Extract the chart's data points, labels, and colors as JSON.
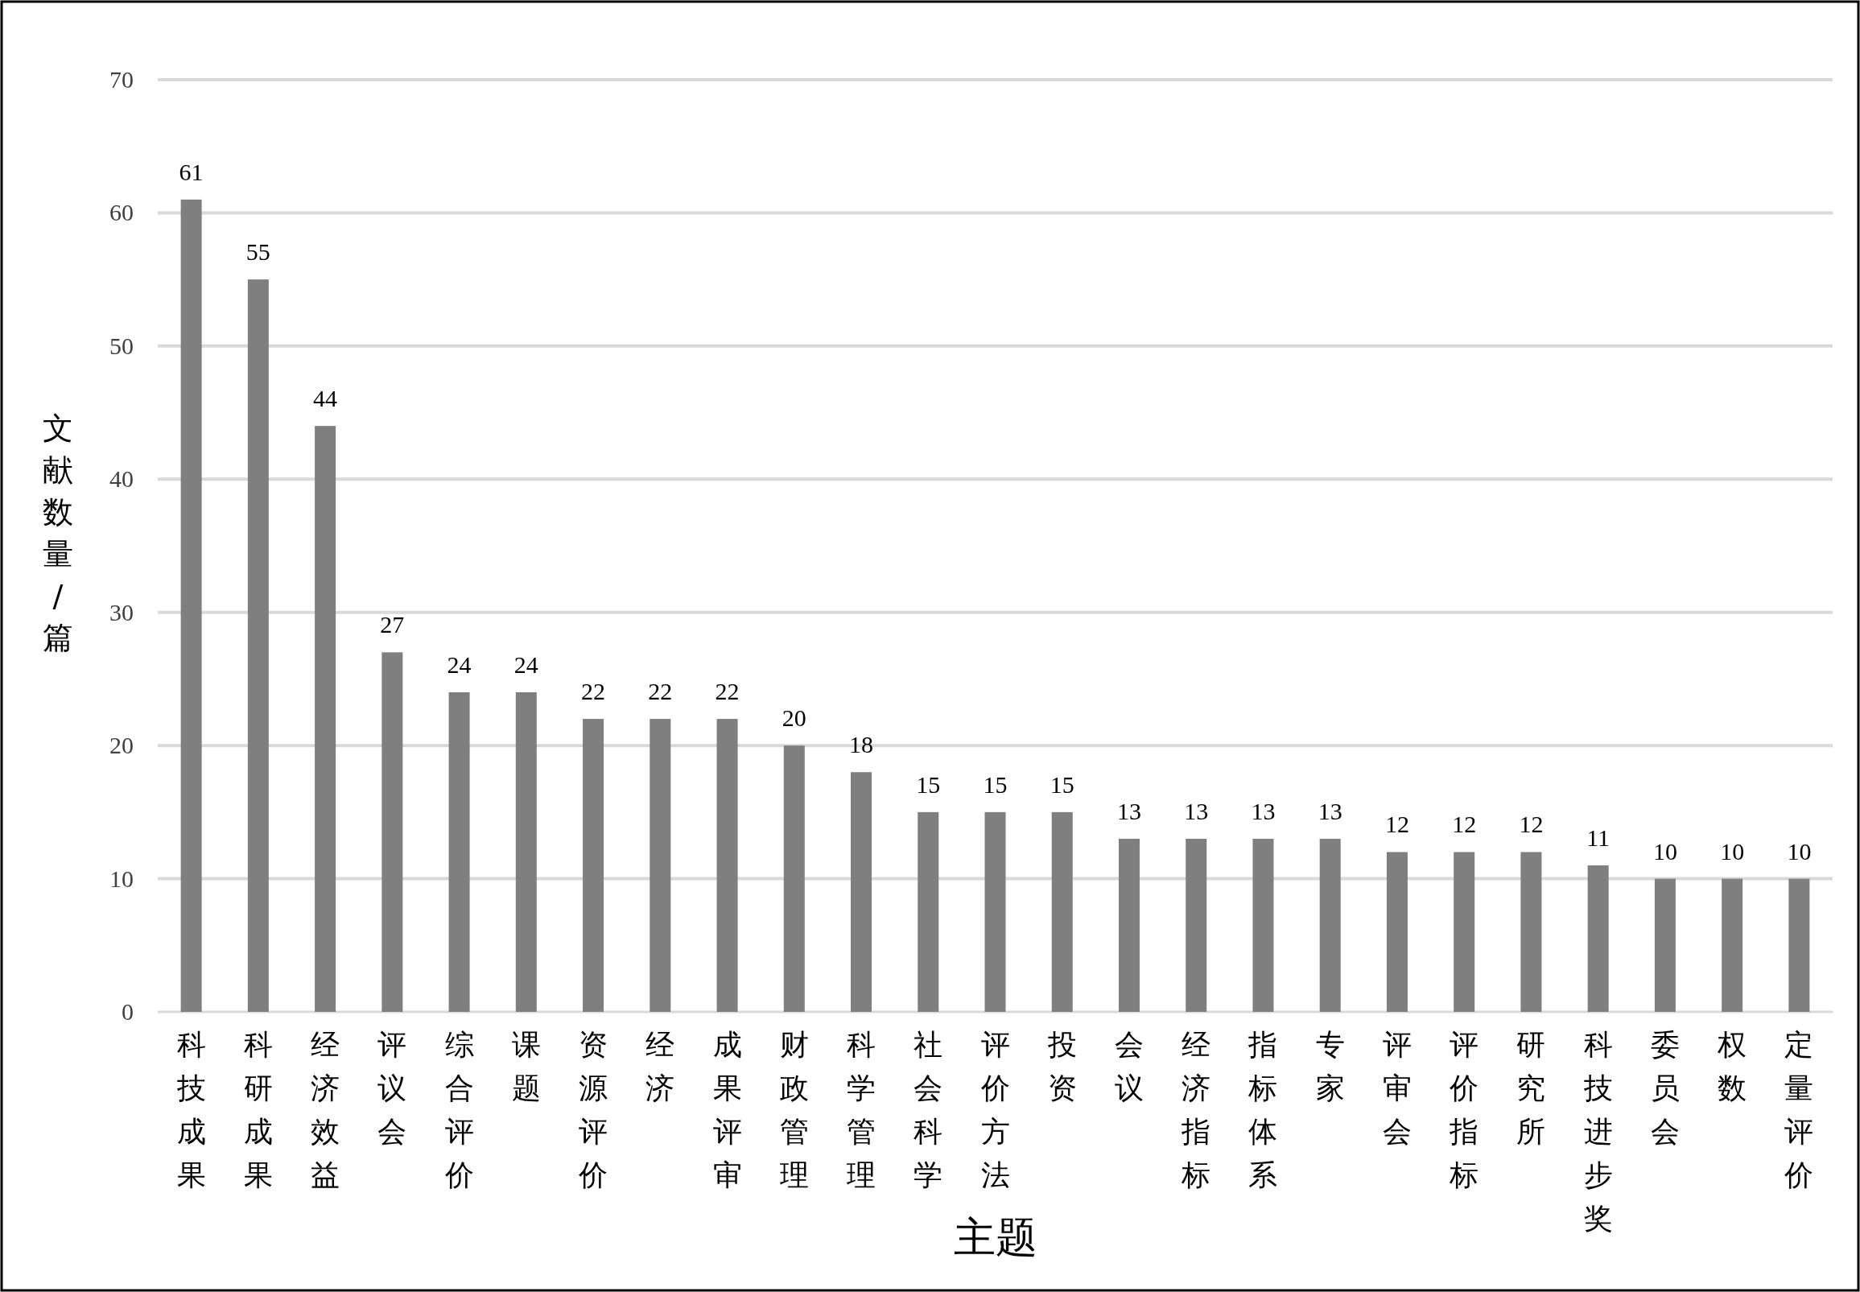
{
  "chart_data": {
    "type": "bar",
    "xlabel": "主题",
    "ylabel": "文献数量/篇",
    "categories": [
      "科技成果",
      "科研成果",
      "经济效益",
      "评议会",
      "综合评价",
      "课题",
      "资源评价",
      "经济",
      "成果评审",
      "财政管理",
      "科学管理",
      "社会科学",
      "评价方法",
      "投资",
      "会议",
      "经济指标",
      "指标体系",
      "专家",
      "评审会",
      "评价指标",
      "研究所",
      "科技进步奖",
      "委员会",
      "权数",
      "定量评价"
    ],
    "values": [
      61,
      55,
      44,
      27,
      24,
      24,
      22,
      22,
      22,
      20,
      18,
      15,
      15,
      15,
      13,
      13,
      13,
      13,
      12,
      12,
      12,
      11,
      10,
      10,
      10
    ],
    "color": "#7f7f7f",
    "ylim": [
      0,
      70
    ],
    "yticks": [
      0,
      10,
      20,
      30,
      40,
      50,
      60,
      70
    ],
    "grid": "y",
    "data_labels": true
  }
}
